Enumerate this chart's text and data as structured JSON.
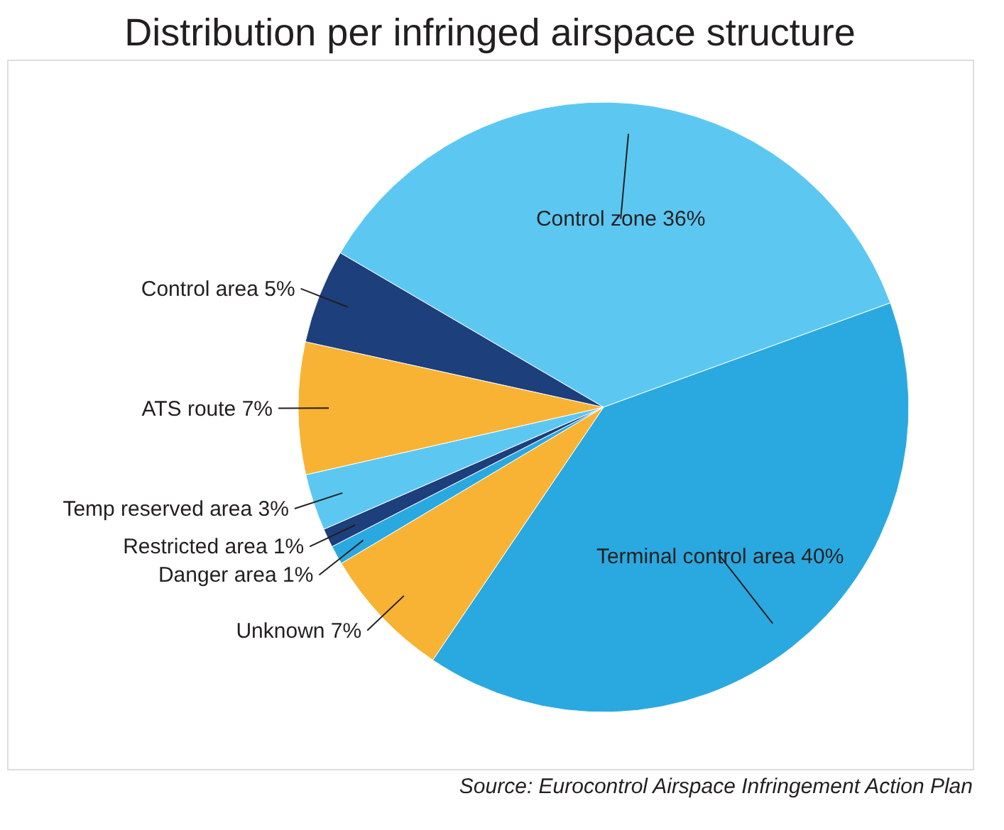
{
  "chart_data": {
    "type": "pie",
    "title": "Distribution per infringed airspace structure",
    "categories": [
      "Control zone",
      "Terminal control area",
      "Unknown",
      "Danger area",
      "Restricted area",
      "Temp reserved area",
      "ATS route",
      "Control area"
    ],
    "values": [
      36,
      40,
      7,
      1,
      1,
      3,
      7,
      5
    ],
    "value_labels": [
      "36%",
      "40%",
      "7%",
      "1%",
      "1%",
      "3%",
      "7%",
      "5%"
    ],
    "colors": [
      "#5cc8f2",
      "#2aa9e0",
      "#f8b334",
      "#2aa9e0",
      "#1d3f7c",
      "#5cc8f2",
      "#f8b334",
      "#1d3f7c"
    ],
    "annotations": [
      "Source: Eurocontrol Airspace Infringement Action Plan"
    ]
  }
}
